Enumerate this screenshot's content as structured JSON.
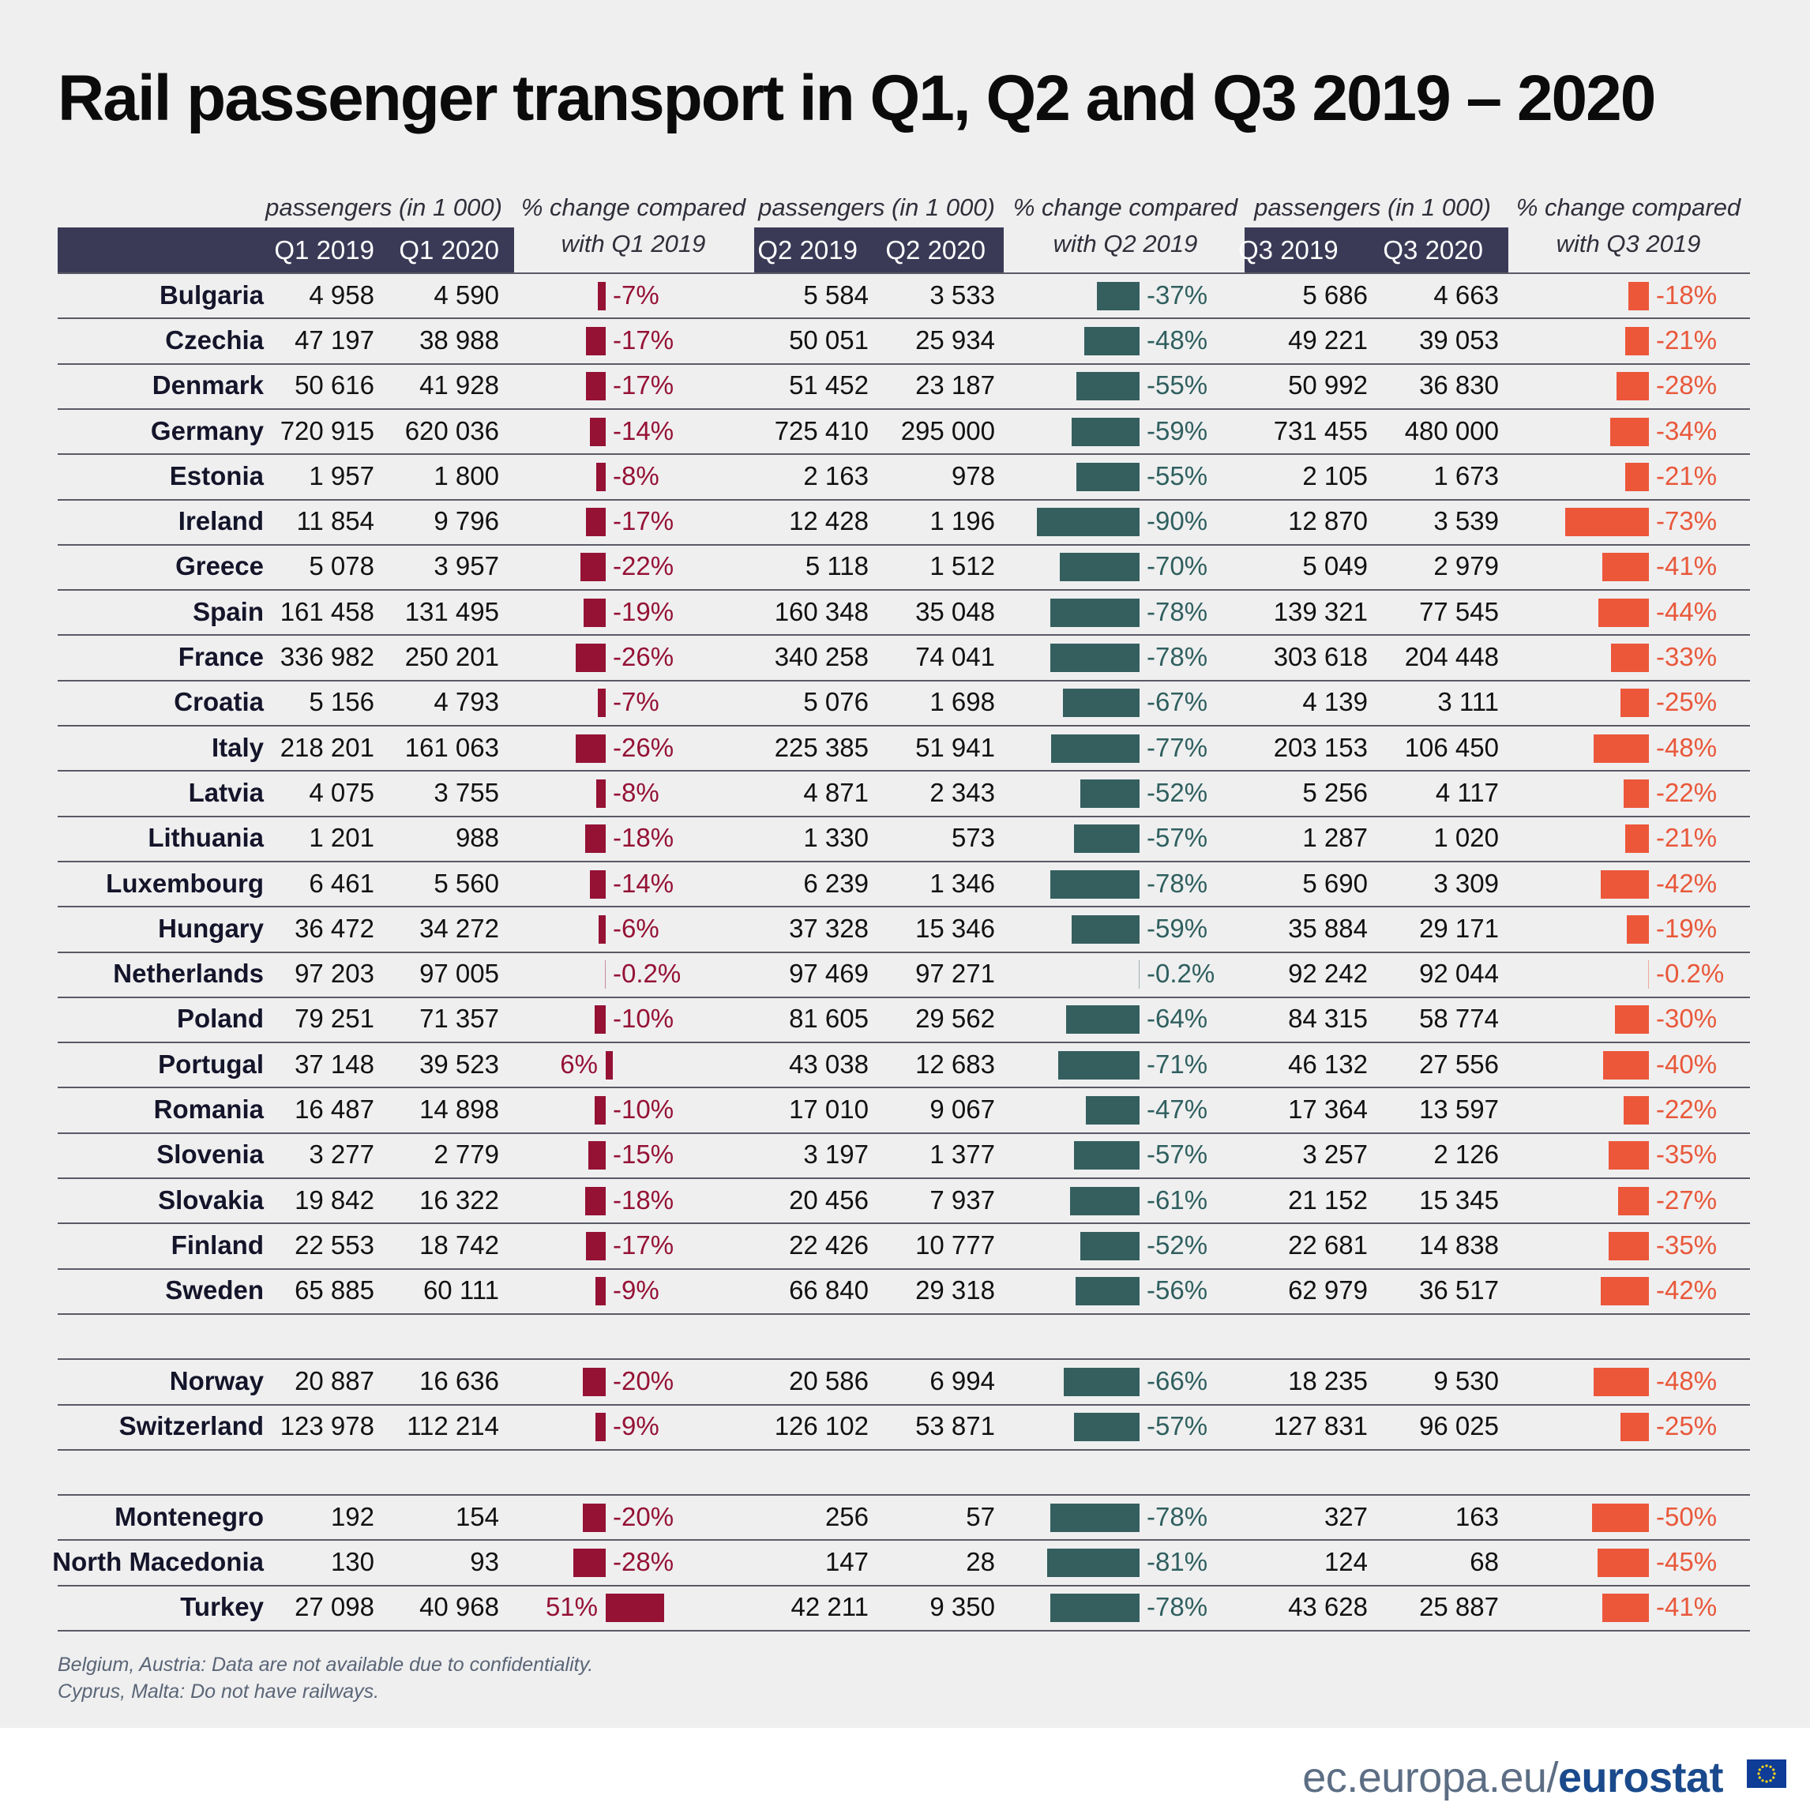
{
  "title": "Rail passenger transport in Q1, Q2 and Q3 2019 – 2020",
  "headers": {
    "passengers": "passengers (in 1 000)",
    "change_line1": "% change compared",
    "q1_change_line2": "with Q1 2019",
    "q2_change_line2": "with Q2 2019",
    "q3_change_line2": "with Q3 2019",
    "q1_2019": "Q1 2019",
    "q1_2020": "Q1 2020",
    "q2_2019": "Q2 2019",
    "q2_2020": "Q2 2020",
    "q3_2019": "Q3 2019",
    "q3_2020": "Q3 2020"
  },
  "colors": {
    "q1": "#951235",
    "q2": "#355f5f",
    "q3": "#ec573a",
    "header_bg": "#3a3a57"
  },
  "chart_data": {
    "type": "table",
    "title": "Rail passenger transport in Q1, Q2 and Q3 2019 – 2020",
    "unit": "passengers (in 1 000)",
    "columns": [
      "Q1 2019",
      "Q1 2020",
      "% change Q1",
      "Q2 2019",
      "Q2 2020",
      "% change Q2",
      "Q3 2019",
      "Q3 2020",
      "% change Q3"
    ],
    "groups": [
      [
        {
          "country": "Bulgaria",
          "q1": [
            "4 958",
            "4 590"
          ],
          "q1_change": -7,
          "q1_label": "-7%",
          "q2": [
            "5 584",
            "3 533"
          ],
          "q2_change": -37,
          "q2_label": "-37%",
          "q3": [
            "5 686",
            "4 663"
          ],
          "q3_change": -18,
          "q3_label": "-18%"
        },
        {
          "country": "Czechia",
          "q1": [
            "47 197",
            "38 988"
          ],
          "q1_change": -17,
          "q1_label": "-17%",
          "q2": [
            "50 051",
            "25 934"
          ],
          "q2_change": -48,
          "q2_label": "-48%",
          "q3": [
            "49 221",
            "39 053"
          ],
          "q3_change": -21,
          "q3_label": "-21%"
        },
        {
          "country": "Denmark",
          "q1": [
            "50 616",
            "41 928"
          ],
          "q1_change": -17,
          "q1_label": "-17%",
          "q2": [
            "51 452",
            "23 187"
          ],
          "q2_change": -55,
          "q2_label": "-55%",
          "q3": [
            "50 992",
            "36 830"
          ],
          "q3_change": -28,
          "q3_label": "-28%"
        },
        {
          "country": "Germany",
          "q1": [
            "720 915",
            "620 036"
          ],
          "q1_change": -14,
          "q1_label": "-14%",
          "q2": [
            "725 410",
            "295 000"
          ],
          "q2_change": -59,
          "q2_label": "-59%",
          "q3": [
            "731 455",
            "480 000"
          ],
          "q3_change": -34,
          "q3_label": "-34%"
        },
        {
          "country": "Estonia",
          "q1": [
            "1 957",
            "1 800"
          ],
          "q1_change": -8,
          "q1_label": "-8%",
          "q2": [
            "2 163",
            "978"
          ],
          "q2_change": -55,
          "q2_label": "-55%",
          "q3": [
            "2 105",
            "1 673"
          ],
          "q3_change": -21,
          "q3_label": "-21%"
        },
        {
          "country": "Ireland",
          "q1": [
            "11 854",
            "9 796"
          ],
          "q1_change": -17,
          "q1_label": "-17%",
          "q2": [
            "12 428",
            "1 196"
          ],
          "q2_change": -90,
          "q2_label": "-90%",
          "q3": [
            "12 870",
            "3 539"
          ],
          "q3_change": -73,
          "q3_label": "-73%"
        },
        {
          "country": "Greece",
          "q1": [
            "5 078",
            "3 957"
          ],
          "q1_change": -22,
          "q1_label": "-22%",
          "q2": [
            "5 118",
            "1 512"
          ],
          "q2_change": -70,
          "q2_label": "-70%",
          "q3": [
            "5 049",
            "2 979"
          ],
          "q3_change": -41,
          "q3_label": "-41%"
        },
        {
          "country": "Spain",
          "q1": [
            "161 458",
            "131 495"
          ],
          "q1_change": -19,
          "q1_label": "-19%",
          "q2": [
            "160 348",
            "35 048"
          ],
          "q2_change": -78,
          "q2_label": "-78%",
          "q3": [
            "139 321",
            "77 545"
          ],
          "q3_change": -44,
          "q3_label": "-44%"
        },
        {
          "country": "France",
          "q1": [
            "336 982",
            "250 201"
          ],
          "q1_change": -26,
          "q1_label": "-26%",
          "q2": [
            "340 258",
            "74 041"
          ],
          "q2_change": -78,
          "q2_label": "-78%",
          "q3": [
            "303 618",
            "204 448"
          ],
          "q3_change": -33,
          "q3_label": "-33%"
        },
        {
          "country": "Croatia",
          "q1": [
            "5 156",
            "4 793"
          ],
          "q1_change": -7,
          "q1_label": "-7%",
          "q2": [
            "5 076",
            "1 698"
          ],
          "q2_change": -67,
          "q2_label": "-67%",
          "q3": [
            "4 139",
            "3 111"
          ],
          "q3_change": -25,
          "q3_label": "-25%"
        },
        {
          "country": "Italy",
          "q1": [
            "218 201",
            "161 063"
          ],
          "q1_change": -26,
          "q1_label": "-26%",
          "q2": [
            "225 385",
            "51 941"
          ],
          "q2_change": -77,
          "q2_label": "-77%",
          "q3": [
            "203 153",
            "106 450"
          ],
          "q3_change": -48,
          "q3_label": "-48%"
        },
        {
          "country": "Latvia",
          "q1": [
            "4 075",
            "3 755"
          ],
          "q1_change": -8,
          "q1_label": "-8%",
          "q2": [
            "4 871",
            "2 343"
          ],
          "q2_change": -52,
          "q2_label": "-52%",
          "q3": [
            "5 256",
            "4 117"
          ],
          "q3_change": -22,
          "q3_label": "-22%"
        },
        {
          "country": "Lithuania",
          "q1": [
            "1 201",
            "988"
          ],
          "q1_change": -18,
          "q1_label": "-18%",
          "q2": [
            "1 330",
            "573"
          ],
          "q2_change": -57,
          "q2_label": "-57%",
          "q3": [
            "1 287",
            "1 020"
          ],
          "q3_change": -21,
          "q3_label": "-21%"
        },
        {
          "country": "Luxembourg",
          "q1": [
            "6 461",
            "5 560"
          ],
          "q1_change": -14,
          "q1_label": "-14%",
          "q2": [
            "6 239",
            "1 346"
          ],
          "q2_change": -78,
          "q2_label": "-78%",
          "q3": [
            "5 690",
            "3 309"
          ],
          "q3_change": -42,
          "q3_label": "-42%"
        },
        {
          "country": "Hungary",
          "q1": [
            "36 472",
            "34 272"
          ],
          "q1_change": -6,
          "q1_label": "-6%",
          "q2": [
            "37 328",
            "15 346"
          ],
          "q2_change": -59,
          "q2_label": "-59%",
          "q3": [
            "35 884",
            "29 171"
          ],
          "q3_change": -19,
          "q3_label": "-19%"
        },
        {
          "country": "Netherlands",
          "q1": [
            "97 203",
            "97 005"
          ],
          "q1_change": -0.2,
          "q1_label": "-0.2%",
          "q2": [
            "97 469",
            "97 271"
          ],
          "q2_change": -0.2,
          "q2_label": "-0.2%",
          "q3": [
            "92 242",
            "92 044"
          ],
          "q3_change": -0.2,
          "q3_label": "-0.2%"
        },
        {
          "country": "Poland",
          "q1": [
            "79 251",
            "71 357"
          ],
          "q1_change": -10,
          "q1_label": "-10%",
          "q2": [
            "81 605",
            "29 562"
          ],
          "q2_change": -64,
          "q2_label": "-64%",
          "q3": [
            "84 315",
            "58 774"
          ],
          "q3_change": -30,
          "q3_label": "-30%"
        },
        {
          "country": "Portugal",
          "q1": [
            "37 148",
            "39 523"
          ],
          "q1_change": 6,
          "q1_label": "6%",
          "q2": [
            "43 038",
            "12 683"
          ],
          "q2_change": -71,
          "q2_label": "-71%",
          "q3": [
            "46 132",
            "27 556"
          ],
          "q3_change": -40,
          "q3_label": "-40%"
        },
        {
          "country": "Romania",
          "q1": [
            "16 487",
            "14 898"
          ],
          "q1_change": -10,
          "q1_label": "-10%",
          "q2": [
            "17 010",
            "9 067"
          ],
          "q2_change": -47,
          "q2_label": "-47%",
          "q3": [
            "17 364",
            "13 597"
          ],
          "q3_change": -22,
          "q3_label": "-22%"
        },
        {
          "country": "Slovenia",
          "q1": [
            "3 277",
            "2 779"
          ],
          "q1_change": -15,
          "q1_label": "-15%",
          "q2": [
            "3 197",
            "1 377"
          ],
          "q2_change": -57,
          "q2_label": "-57%",
          "q3": [
            "3 257",
            "2 126"
          ],
          "q3_change": -35,
          "q3_label": "-35%"
        },
        {
          "country": "Slovakia",
          "q1": [
            "19 842",
            "16 322"
          ],
          "q1_change": -18,
          "q1_label": "-18%",
          "q2": [
            "20 456",
            "7 937"
          ],
          "q2_change": -61,
          "q2_label": "-61%",
          "q3": [
            "21 152",
            "15 345"
          ],
          "q3_change": -27,
          "q3_label": "-27%"
        },
        {
          "country": "Finland",
          "q1": [
            "22 553",
            "18 742"
          ],
          "q1_change": -17,
          "q1_label": "-17%",
          "q2": [
            "22 426",
            "10 777"
          ],
          "q2_change": -52,
          "q2_label": "-52%",
          "q3": [
            "22 681",
            "14 838"
          ],
          "q3_change": -35,
          "q3_label": "-35%"
        },
        {
          "country": "Sweden",
          "q1": [
            "65 885",
            "60 111"
          ],
          "q1_change": -9,
          "q1_label": "-9%",
          "q2": [
            "66 840",
            "29 318"
          ],
          "q2_change": -56,
          "q2_label": "-56%",
          "q3": [
            "62 979",
            "36 517"
          ],
          "q3_change": -42,
          "q3_label": "-42%"
        }
      ],
      [
        {
          "country": "Norway",
          "q1": [
            "20 887",
            "16 636"
          ],
          "q1_change": -20,
          "q1_label": "-20%",
          "q2": [
            "20 586",
            "6 994"
          ],
          "q2_change": -66,
          "q2_label": "-66%",
          "q3": [
            "18 235",
            "9 530"
          ],
          "q3_change": -48,
          "q3_label": "-48%"
        },
        {
          "country": "Switzerland",
          "q1": [
            "123 978",
            "112 214"
          ],
          "q1_change": -9,
          "q1_label": "-9%",
          "q2": [
            "126 102",
            "53 871"
          ],
          "q2_change": -57,
          "q2_label": "-57%",
          "q3": [
            "127 831",
            "96 025"
          ],
          "q3_change": -25,
          "q3_label": "-25%"
        }
      ],
      [
        {
          "country": "Montenegro",
          "q1": [
            "192",
            "154"
          ],
          "q1_change": -20,
          "q1_label": "-20%",
          "q2": [
            "256",
            "57"
          ],
          "q2_change": -78,
          "q2_label": "-78%",
          "q3": [
            "327",
            "163"
          ],
          "q3_change": -50,
          "q3_label": "-50%"
        },
        {
          "country": "North Macedonia",
          "q1": [
            "130",
            "93"
          ],
          "q1_change": -28,
          "q1_label": "-28%",
          "q2": [
            "147",
            "28"
          ],
          "q2_change": -81,
          "q2_label": "-81%",
          "q3": [
            "124",
            "68"
          ],
          "q3_change": -45,
          "q3_label": "-45%"
        },
        {
          "country": "Turkey",
          "q1": [
            "27 098",
            "40 968"
          ],
          "q1_change": 51,
          "q1_label": "51%",
          "q2": [
            "42 211",
            "9 350"
          ],
          "q2_change": -78,
          "q2_label": "-78%",
          "q3": [
            "43 628",
            "25 887"
          ],
          "q3_change": -41,
          "q3_label": "-41%"
        }
      ]
    ]
  },
  "notes": [
    "Belgium, Austria: Data are not available due to confidentiality.",
    "Cyprus, Malta: Do not have railways."
  ],
  "logo": {
    "domain": "ec.europa.eu/",
    "brand": "eurostat"
  }
}
